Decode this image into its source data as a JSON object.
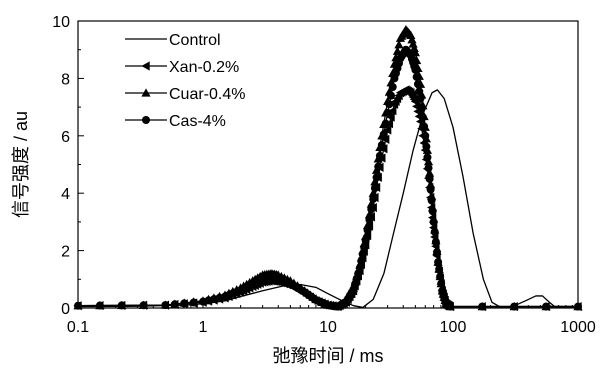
{
  "chart_data": {
    "type": "line",
    "xscale": "log",
    "xlim": [
      0.1,
      1000
    ],
    "ylim": [
      0,
      10
    ],
    "xlabel": "弛豫时间 / ms",
    "ylabel": "信号强度 / au",
    "xticks": [
      {
        "value": 0.1,
        "label": "0.1"
      },
      {
        "value": 1,
        "label": "1"
      },
      {
        "value": 10,
        "label": "10"
      },
      {
        "value": 100,
        "label": "100"
      },
      {
        "value": 1000,
        "label": "1000"
      }
    ],
    "yticks": [
      {
        "value": 0,
        "label": "0"
      },
      {
        "value": 2,
        "label": "2"
      },
      {
        "value": 4,
        "label": "4"
      },
      {
        "value": 6,
        "label": "6"
      },
      {
        "value": 8,
        "label": "8"
      },
      {
        "value": 10,
        "label": "10"
      }
    ],
    "grid": false,
    "legend_position": "top-left",
    "series": [
      {
        "name": "Control",
        "marker": "none",
        "points": [
          [
            0.1,
            0.05
          ],
          [
            0.3,
            0.06
          ],
          [
            0.7,
            0.1
          ],
          [
            1.0,
            0.15
          ],
          [
            1.5,
            0.25
          ],
          [
            2.0,
            0.4
          ],
          [
            3.0,
            0.6
          ],
          [
            4.5,
            0.78
          ],
          [
            6.0,
            0.82
          ],
          [
            8.0,
            0.72
          ],
          [
            10.0,
            0.5
          ],
          [
            13.0,
            0.25
          ],
          [
            16.0,
            0.08
          ],
          [
            19.0,
            0.02
          ],
          [
            23.0,
            0.3
          ],
          [
            28.0,
            1.2
          ],
          [
            33.0,
            2.5
          ],
          [
            40.0,
            4.0
          ],
          [
            48.0,
            5.5
          ],
          [
            58.0,
            6.8
          ],
          [
            68.0,
            7.5
          ],
          [
            75.0,
            7.6
          ],
          [
            85.0,
            7.3
          ],
          [
            100.0,
            6.3
          ],
          [
            120.0,
            4.6
          ],
          [
            145.0,
            2.6
          ],
          [
            175.0,
            1.0
          ],
          [
            205.0,
            0.2
          ],
          [
            240.0,
            0.03
          ],
          [
            300.0,
            0.05
          ],
          [
            380.0,
            0.25
          ],
          [
            460.0,
            0.42
          ],
          [
            520.0,
            0.42
          ],
          [
            590.0,
            0.2
          ],
          [
            650.0,
            0.05
          ],
          [
            1000.0,
            0.05
          ]
        ]
      },
      {
        "name": "Xan-0.2%",
        "marker": "triangle-left",
        "points": [
          [
            0.1,
            0.08
          ],
          [
            0.5,
            0.1
          ],
          [
            1.0,
            0.2
          ],
          [
            1.5,
            0.35
          ],
          [
            2.0,
            0.55
          ],
          [
            2.5,
            0.75
          ],
          [
            3.0,
            0.9
          ],
          [
            3.5,
            0.95
          ],
          [
            4.0,
            0.92
          ],
          [
            5.0,
            0.78
          ],
          [
            6.5,
            0.5
          ],
          [
            8.0,
            0.25
          ],
          [
            10.0,
            0.1
          ],
          [
            12.0,
            0.05
          ],
          [
            14.0,
            0.2
          ],
          [
            16.0,
            0.6
          ],
          [
            18.0,
            1.3
          ],
          [
            20.0,
            2.2
          ],
          [
            23.0,
            3.5
          ],
          [
            26.0,
            4.9
          ],
          [
            30.0,
            6.2
          ],
          [
            34.0,
            7.1
          ],
          [
            38.0,
            7.5
          ],
          [
            42.0,
            7.6
          ],
          [
            46.0,
            7.5
          ],
          [
            50.0,
            7.2
          ],
          [
            55.0,
            6.5
          ],
          [
            60.0,
            5.5
          ],
          [
            65.0,
            4.2
          ],
          [
            70.0,
            2.8
          ],
          [
            76.0,
            1.5
          ],
          [
            82.0,
            0.6
          ],
          [
            88.0,
            0.15
          ],
          [
            95.0,
            0.05
          ],
          [
            1000.0,
            0.05
          ]
        ]
      },
      {
        "name": "Cuar-0.4%",
        "marker": "triangle-up",
        "points": [
          [
            0.1,
            0.08
          ],
          [
            0.5,
            0.1
          ],
          [
            1.0,
            0.25
          ],
          [
            1.5,
            0.45
          ],
          [
            2.0,
            0.7
          ],
          [
            2.5,
            0.95
          ],
          [
            3.0,
            1.15
          ],
          [
            3.5,
            1.2
          ],
          [
            4.0,
            1.15
          ],
          [
            5.0,
            0.95
          ],
          [
            6.5,
            0.6
          ],
          [
            8.0,
            0.3
          ],
          [
            10.0,
            0.1
          ],
          [
            12.0,
            0.05
          ],
          [
            14.0,
            0.25
          ],
          [
            16.0,
            0.7
          ],
          [
            18.0,
            1.5
          ],
          [
            20.0,
            2.5
          ],
          [
            23.0,
            4.0
          ],
          [
            26.0,
            5.6
          ],
          [
            30.0,
            7.2
          ],
          [
            34.0,
            8.5
          ],
          [
            38.0,
            9.4
          ],
          [
            42.0,
            9.7
          ],
          [
            46.0,
            9.5
          ],
          [
            50.0,
            8.9
          ],
          [
            55.0,
            7.8
          ],
          [
            60.0,
            6.3
          ],
          [
            65.0,
            4.7
          ],
          [
            70.0,
            3.1
          ],
          [
            76.0,
            1.6
          ],
          [
            82.0,
            0.6
          ],
          [
            88.0,
            0.15
          ],
          [
            95.0,
            0.05
          ],
          [
            1000.0,
            0.05
          ]
        ]
      },
      {
        "name": "Cas-4%",
        "marker": "circle",
        "points": [
          [
            0.1,
            0.08
          ],
          [
            0.5,
            0.1
          ],
          [
            1.0,
            0.22
          ],
          [
            1.5,
            0.4
          ],
          [
            2.0,
            0.62
          ],
          [
            2.5,
            0.85
          ],
          [
            3.0,
            1.02
          ],
          [
            3.5,
            1.08
          ],
          [
            4.0,
            1.03
          ],
          [
            5.0,
            0.85
          ],
          [
            6.5,
            0.55
          ],
          [
            8.0,
            0.28
          ],
          [
            10.0,
            0.1
          ],
          [
            12.0,
            0.05
          ],
          [
            14.0,
            0.22
          ],
          [
            16.0,
            0.65
          ],
          [
            18.0,
            1.4
          ],
          [
            20.0,
            2.35
          ],
          [
            23.0,
            3.8
          ],
          [
            26.0,
            5.3
          ],
          [
            30.0,
            6.8
          ],
          [
            34.0,
            8.0
          ],
          [
            38.0,
            8.7
          ],
          [
            42.0,
            9.0
          ],
          [
            46.0,
            8.8
          ],
          [
            50.0,
            8.3
          ],
          [
            55.0,
            7.3
          ],
          [
            60.0,
            6.0
          ],
          [
            65.0,
            4.5
          ],
          [
            70.0,
            3.0
          ],
          [
            76.0,
            1.6
          ],
          [
            82.0,
            0.6
          ],
          [
            88.0,
            0.15
          ],
          [
            95.0,
            0.05
          ],
          [
            1000.0,
            0.05
          ]
        ]
      }
    ]
  }
}
